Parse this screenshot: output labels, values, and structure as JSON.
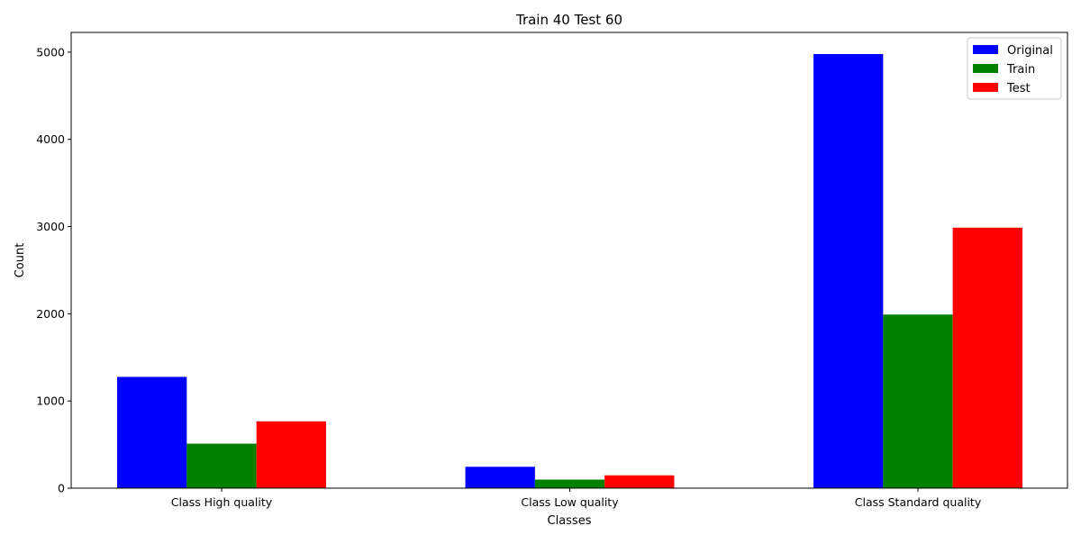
{
  "chart_data": {
    "type": "bar",
    "title": "Train 40 Test 60",
    "xlabel": "Classes",
    "ylabel": "Count",
    "categories": [
      "Class High quality",
      "Class Low quality",
      "Class Standard quality"
    ],
    "series": [
      {
        "name": "Original",
        "color": "#0000ff",
        "values": [
          1276,
          245,
          4978
        ]
      },
      {
        "name": "Train",
        "color": "#008000",
        "values": [
          510,
          98,
          1991
        ]
      },
      {
        "name": "Test",
        "color": "#ff0000",
        "values": [
          766,
          147,
          2987
        ]
      }
    ],
    "ylim": [
      0,
      5226
    ],
    "yticks": [
      0,
      1000,
      2000,
      3000,
      4000,
      5000
    ],
    "grid": false,
    "legend_position": "top-right"
  }
}
